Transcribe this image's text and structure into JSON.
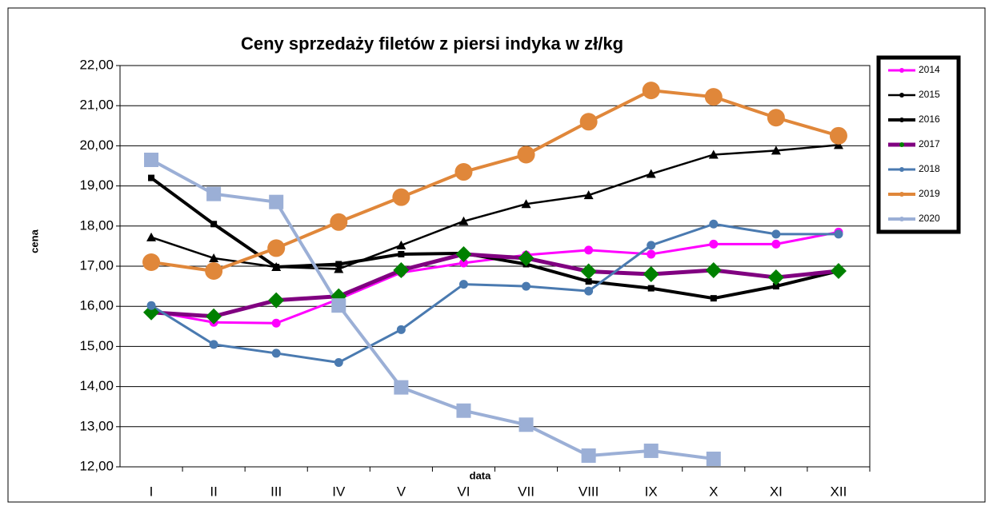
{
  "chart_data": {
    "type": "line",
    "title": "Ceny sprzedaży filetów z  piersi indyka w zł/kg",
    "x_label": "data",
    "y_label": "cena",
    "categories": [
      "I",
      "II",
      "III",
      "IV",
      "V",
      "VI",
      "VII",
      "VIII",
      "IX",
      "X",
      "XI",
      "XII"
    ],
    "ylim": [
      12,
      22
    ],
    "yticks": [
      {
        "value": 12,
        "label": "12,00"
      },
      {
        "value": 13,
        "label": "13,00"
      },
      {
        "value": 14,
        "label": "14,00"
      },
      {
        "value": 15,
        "label": "15,00"
      },
      {
        "value": 16,
        "label": "16,00"
      },
      {
        "value": 17,
        "label": "17,00"
      },
      {
        "value": 18,
        "label": "18,00"
      },
      {
        "value": 19,
        "label": "19,00"
      },
      {
        "value": 20,
        "label": "20,00"
      },
      {
        "value": 21,
        "label": "21,00"
      },
      {
        "value": 22,
        "label": "22,00"
      }
    ],
    "grid": true,
    "legend": "right",
    "series": [
      {
        "name": "2014",
        "color": "#ff00ff",
        "marker": "circle",
        "values": [
          15.88,
          15.6,
          15.58,
          16.18,
          16.84,
          17.08,
          17.28,
          17.4,
          17.3,
          17.55,
          17.55,
          17.85
        ]
      },
      {
        "name": "2015",
        "color": "#000000",
        "marker": "triangle",
        "values": [
          17.72,
          17.2,
          16.98,
          16.93,
          17.52,
          18.12,
          18.55,
          18.77,
          19.3,
          19.78,
          19.88,
          20.02
        ]
      },
      {
        "name": "2016",
        "color": "#000000",
        "marker": "square",
        "values": [
          19.2,
          18.05,
          16.98,
          17.05,
          17.3,
          17.32,
          17.05,
          16.62,
          16.45,
          16.2,
          16.5,
          16.88
        ]
      },
      {
        "name": "2017",
        "color": "#800080",
        "marker": "diamond",
        "marker_color": "#008000",
        "values": [
          15.85,
          15.75,
          16.15,
          16.25,
          16.9,
          17.3,
          17.2,
          16.87,
          16.8,
          16.9,
          16.72,
          16.88
        ]
      },
      {
        "name": "2018",
        "color": "#4a7ab0",
        "marker": "circle",
        "values": [
          16.02,
          15.05,
          14.83,
          14.6,
          15.42,
          16.55,
          16.5,
          16.38,
          17.52,
          18.05,
          17.8,
          17.8
        ]
      },
      {
        "name": "2019",
        "color": "#e0873a",
        "marker": "big-circle",
        "values": [
          17.1,
          16.88,
          17.45,
          18.1,
          18.72,
          19.35,
          19.78,
          20.6,
          21.38,
          21.22,
          20.7,
          20.25
        ]
      },
      {
        "name": "2020",
        "color": "#9bafd6",
        "marker": "big-square",
        "values": [
          19.65,
          18.8,
          18.6,
          16.02,
          13.98,
          13.4,
          13.05,
          12.28,
          12.4,
          12.2,
          null,
          null
        ]
      }
    ]
  }
}
